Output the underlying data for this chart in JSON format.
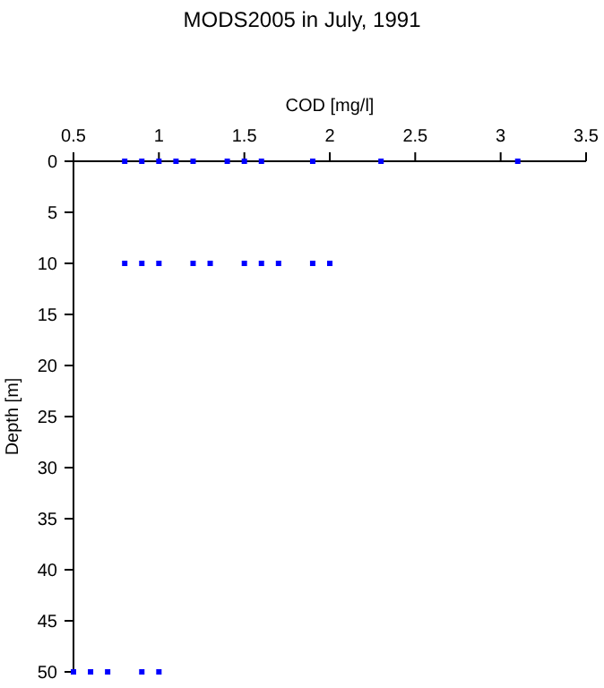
{
  "chart_data": {
    "type": "scatter",
    "title": "MODS2005 in July, 1991",
    "xlabel": "COD [mg/l]",
    "ylabel": "Depth [m]",
    "series": [
      {
        "color": "#0000ff",
        "x": [
          0.8,
          0.9,
          1.0,
          1.1,
          1.2,
          1.4,
          1.5,
          1.6,
          1.9,
          2.3,
          3.1,
          0.8,
          0.9,
          1.0,
          1.2,
          1.3,
          1.5,
          1.6,
          1.7,
          1.9,
          2.0,
          0.5,
          0.6,
          0.7,
          0.9,
          1.0
        ],
        "values": [
          0,
          0,
          0,
          0,
          0,
          0,
          0,
          0,
          0,
          0,
          0,
          10,
          10,
          10,
          10,
          10,
          10,
          10,
          10,
          10,
          10,
          50,
          50,
          50,
          50,
          50
        ]
      }
    ],
    "xlim": [
      0.5,
      3.5
    ],
    "xticks": [
      0.5,
      1,
      1.5,
      2,
      2.5,
      3,
      3.5
    ],
    "ylim": [
      50,
      0
    ],
    "yticks": [
      0,
      5,
      10,
      15,
      20,
      25,
      30,
      35,
      40,
      45,
      50
    ],
    "marker": "square"
  }
}
